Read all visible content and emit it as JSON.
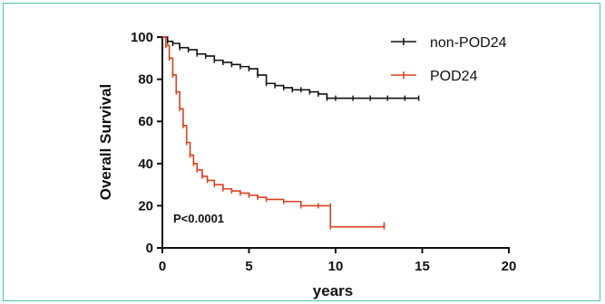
{
  "chart_data": {
    "type": "line",
    "title": "",
    "xlabel": "years",
    "ylabel": "Overall Survival",
    "xlim": [
      0,
      20
    ],
    "ylim": [
      0,
      100
    ],
    "xticks": [
      "0",
      "5",
      "10",
      "15",
      "20"
    ],
    "yticks": [
      "0",
      "20",
      "40",
      "60",
      "80",
      "100"
    ],
    "grid": false,
    "legend_position": "top-right",
    "annotation": "P<0.0001",
    "series": [
      {
        "name": "non-POD24",
        "color": "#111111",
        "x": [
          0,
          0.3,
          0.6,
          1,
          1.5,
          2,
          2.5,
          3,
          3.5,
          4,
          4.5,
          5,
          5.5,
          6,
          6.5,
          7,
          7.5,
          8,
          8.5,
          9,
          9.5,
          10,
          11,
          12,
          13,
          14,
          14.8
        ],
        "y": [
          100,
          98,
          97,
          95,
          94,
          92,
          91,
          89,
          88,
          87,
          86,
          85,
          82,
          78,
          77,
          76,
          75,
          75,
          74,
          73,
          71,
          71,
          71,
          71,
          71,
          71,
          71
        ]
      },
      {
        "name": "POD24",
        "color": "#d9401f",
        "x": [
          0,
          0.2,
          0.4,
          0.6,
          0.8,
          1,
          1.2,
          1.4,
          1.6,
          1.8,
          2,
          2.3,
          2.6,
          3,
          3.5,
          4,
          4.5,
          5,
          5.5,
          6,
          7,
          8,
          9,
          9.7,
          9.7,
          12.8,
          12.8
        ],
        "y": [
          100,
          96,
          90,
          82,
          74,
          66,
          58,
          50,
          44,
          40,
          37,
          34,
          32,
          30,
          28,
          27,
          26,
          25,
          24,
          23,
          22,
          20,
          20,
          20,
          10,
          10,
          11
        ]
      }
    ]
  }
}
